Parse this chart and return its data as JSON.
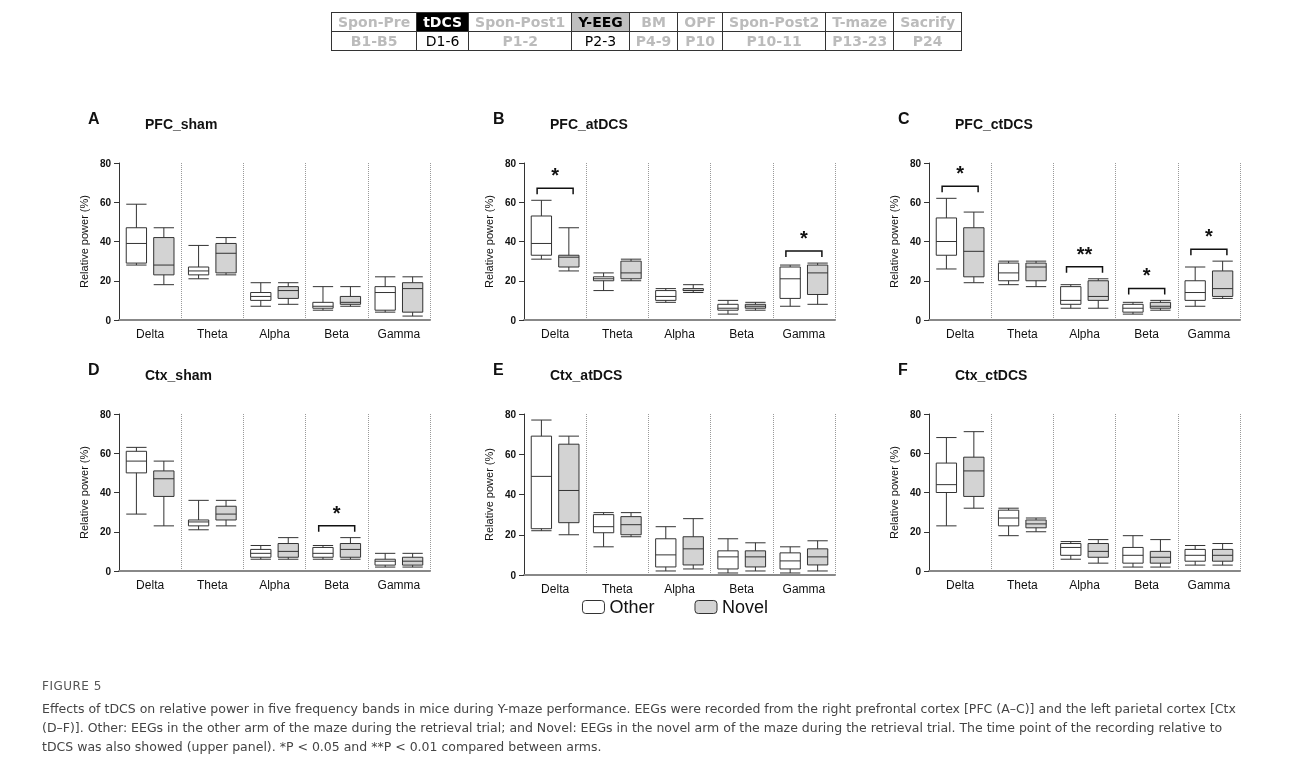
{
  "chart_data": [
    {
      "type": "other",
      "categories": [
        "Spon-Pre",
        "tDCS",
        "Spon-Post1",
        "Y-EEG",
        "BM",
        "OPF",
        "Spon-Post2",
        "T-maze",
        "Sacrify"
      ],
      "cell_labels": [
        [
          "B1-B5",
          "D1-6",
          "P1-2",
          "P2-3",
          "P4-9",
          "P10",
          "P10-11",
          "P13-23",
          "P24"
        ]
      ],
      "colors": [
        "#ffffff",
        "#000000",
        "#ffffff",
        "#bfbfbf",
        "#ffffff",
        "#ffffff",
        "#ffffff",
        "#ffffff",
        "#ffffff"
      ]
    },
    {
      "type": "box",
      "title": "PFC_sham",
      "ylabel": "Relative power (%)",
      "categories": [
        "Delta",
        "Theta",
        "Alpha",
        "Beta",
        "Gamma"
      ],
      "ylim": [
        0,
        80
      ],
      "yticks": [
        0,
        20,
        40,
        60,
        80
      ],
      "grid": "x",
      "legend": false,
      "annotations": [
        "A"
      ],
      "series": [
        {
          "color": "#ffffff",
          "boxes": [
            {
              "low": 28,
              "q1": 29,
              "median": 39,
              "q3": 47,
              "high": 59
            },
            {
              "low": 21,
              "q1": 23,
              "median": 25,
              "q3": 27,
              "high": 38
            },
            {
              "low": 7,
              "q1": 10,
              "median": 12,
              "q3": 14,
              "high": 19
            },
            {
              "low": 5,
              "q1": 6,
              "median": 7,
              "q3": 9,
              "high": 17
            },
            {
              "low": 4,
              "q1": 5,
              "median": 14,
              "q3": 17,
              "high": 22
            }
          ]
        },
        {
          "color": "#d3d3d3",
          "boxes": [
            {
              "low": 18,
              "q1": 23,
              "median": 28,
              "q3": 42,
              "high": 47
            },
            {
              "low": 23,
              "q1": 24,
              "median": 34,
              "q3": 39,
              "high": 42
            },
            {
              "low": 8,
              "q1": 11,
              "median": 15,
              "q3": 17,
              "high": 19
            },
            {
              "low": 7,
              "q1": 8,
              "median": 9,
              "q3": 12,
              "high": 17
            },
            {
              "low": 2,
              "q1": 4,
              "median": 16,
              "q3": 19,
              "high": 22
            }
          ]
        }
      ]
    },
    {
      "type": "box",
      "title": "PFC_atDCS",
      "ylabel": "Relative power (%)",
      "categories": [
        "Delta",
        "Theta",
        "Alpha",
        "Beta",
        "Gamma"
      ],
      "ylim": [
        0,
        80
      ],
      "yticks": [
        0,
        20,
        40,
        60,
        80
      ],
      "grid": "x",
      "legend": false,
      "annotations": [
        "B",
        {
          "text": "*",
          "x": "Delta",
          "y": 61
        },
        {
          "text": "*",
          "x": "Gamma",
          "y": 29
        }
      ],
      "series": [
        {
          "color": "#ffffff",
          "boxes": [
            {
              "low": 31,
              "q1": 33,
              "median": 39,
              "q3": 53,
              "high": 61
            },
            {
              "low": 15,
              "q1": 20,
              "median": 21,
              "q3": 22,
              "high": 24
            },
            {
              "low": 9,
              "q1": 10,
              "median": 12,
              "q3": 15,
              "high": 16
            },
            {
              "low": 3,
              "q1": 5,
              "median": 6,
              "q3": 8,
              "high": 10
            },
            {
              "low": 7,
              "q1": 11,
              "median": 21,
              "q3": 27,
              "high": 28
            }
          ]
        },
        {
          "color": "#d3d3d3",
          "boxes": [
            {
              "low": 25,
              "q1": 27,
              "median": 32,
              "q3": 33,
              "high": 47
            },
            {
              "low": 20,
              "q1": 21,
              "median": 24,
              "q3": 30,
              "high": 31
            },
            {
              "low": 14,
              "q1": 15,
              "median": 15,
              "q3": 16,
              "high": 18
            },
            {
              "low": 5,
              "q1": 6,
              "median": 7,
              "q3": 8,
              "high": 9
            },
            {
              "low": 8,
              "q1": 13,
              "median": 24,
              "q3": 28,
              "high": 29
            }
          ]
        }
      ]
    },
    {
      "type": "box",
      "title": "PFC_ctDCS",
      "ylabel": "Relative power (%)",
      "categories": [
        "Delta",
        "Theta",
        "Alpha",
        "Beta",
        "Gamma"
      ],
      "ylim": [
        0,
        80
      ],
      "yticks": [
        0,
        20,
        40,
        60,
        80
      ],
      "grid": "x",
      "legend": false,
      "annotations": [
        "C",
        {
          "text": "*",
          "x": "Delta",
          "y": 62
        },
        {
          "text": "**",
          "x": "Alpha",
          "y": 21
        },
        {
          "text": "*",
          "x": "Beta",
          "y": 10
        },
        {
          "text": "*",
          "x": "Gamma",
          "y": 30
        }
      ],
      "series": [
        {
          "color": "#ffffff",
          "boxes": [
            {
              "low": 26,
              "q1": 33,
              "median": 40,
              "q3": 52,
              "high": 62
            },
            {
              "low": 18,
              "q1": 20,
              "median": 24,
              "q3": 29,
              "high": 30
            },
            {
              "low": 6,
              "q1": 8,
              "median": 10,
              "q3": 17,
              "high": 18
            },
            {
              "low": 3,
              "q1": 4,
              "median": 6,
              "q3": 8,
              "high": 9
            },
            {
              "low": 7,
              "q1": 10,
              "median": 14,
              "q3": 20,
              "high": 27
            }
          ]
        },
        {
          "color": "#d3d3d3",
          "boxes": [
            {
              "low": 19,
              "q1": 22,
              "median": 35,
              "q3": 47,
              "high": 55
            },
            {
              "low": 17,
              "q1": 20,
              "median": 27,
              "q3": 29,
              "high": 30
            },
            {
              "low": 6,
              "q1": 10,
              "median": 12,
              "q3": 20,
              "high": 21
            },
            {
              "low": 5,
              "q1": 6,
              "median": 7,
              "q3": 9,
              "high": 10
            },
            {
              "low": 11,
              "q1": 12,
              "median": 16,
              "q3": 25,
              "high": 30
            }
          ]
        }
      ]
    },
    {
      "type": "box",
      "title": "Ctx_sham",
      "ylabel": "Relative power (%)",
      "categories": [
        "Delta",
        "Theta",
        "Alpha",
        "Beta",
        "Gamma"
      ],
      "ylim": [
        0,
        80
      ],
      "yticks": [
        0,
        20,
        40,
        60,
        80
      ],
      "grid": "x",
      "legend": false,
      "annotations": [
        "D",
        {
          "text": "*",
          "x": "Beta",
          "y": 17
        }
      ],
      "series": [
        {
          "color": "#ffffff",
          "boxes": [
            {
              "low": 29,
              "q1": 50,
              "median": 56,
              "q3": 61,
              "high": 63
            },
            {
              "low": 21,
              "q1": 23,
              "median": 25,
              "q3": 26,
              "high": 36
            },
            {
              "low": 6,
              "q1": 7,
              "median": 9,
              "q3": 11,
              "high": 13
            },
            {
              "low": 6,
              "q1": 7,
              "median": 9,
              "q3": 12,
              "high": 13
            },
            {
              "low": 2,
              "q1": 3,
              "median": 5,
              "q3": 6,
              "high": 9
            }
          ]
        },
        {
          "color": "#d3d3d3",
          "boxes": [
            {
              "low": 23,
              "q1": 38,
              "median": 47,
              "q3": 51,
              "high": 56
            },
            {
              "low": 23,
              "q1": 26,
              "median": 29,
              "q3": 33,
              "high": 36
            },
            {
              "low": 6,
              "q1": 7,
              "median": 10,
              "q3": 14,
              "high": 17
            },
            {
              "low": 6,
              "q1": 7,
              "median": 11,
              "q3": 14,
              "high": 17
            },
            {
              "low": 2,
              "q1": 3,
              "median": 5,
              "q3": 7,
              "high": 9
            }
          ]
        }
      ]
    },
    {
      "type": "box",
      "title": "Ctx_atDCS",
      "ylabel": "Relative power (%)",
      "categories": [
        "Delta",
        "Theta",
        "Alpha",
        "Beta",
        "Gamma"
      ],
      "ylim": [
        0,
        80
      ],
      "yticks": [
        0,
        20,
        40,
        60,
        80
      ],
      "grid": "x",
      "legend": "bottom",
      "annotations": [
        "E"
      ],
      "series": [
        {
          "name": "Other",
          "color": "#ffffff",
          "boxes": [
            {
              "low": 22,
              "q1": 23,
              "median": 49,
              "q3": 69,
              "high": 77
            },
            {
              "low": 14,
              "q1": 21,
              "median": 24,
              "q3": 30,
              "high": 31
            },
            {
              "low": 2,
              "q1": 4,
              "median": 10,
              "q3": 18,
              "high": 24
            },
            {
              "low": 1,
              "q1": 3,
              "median": 9,
              "q3": 12,
              "high": 18
            },
            {
              "low": 1,
              "q1": 3,
              "median": 7,
              "q3": 11,
              "high": 14
            }
          ]
        },
        {
          "name": "Novel",
          "color": "#d3d3d3",
          "boxes": [
            {
              "low": 20,
              "q1": 26,
              "median": 42,
              "q3": 65,
              "high": 69
            },
            {
              "low": 19,
              "q1": 20,
              "median": 25,
              "q3": 29,
              "high": 31
            },
            {
              "low": 3,
              "q1": 5,
              "median": 13,
              "q3": 19,
              "high": 28
            },
            {
              "low": 2,
              "q1": 4,
              "median": 9,
              "q3": 12,
              "high": 16
            },
            {
              "low": 2,
              "q1": 5,
              "median": 9,
              "q3": 13,
              "high": 17
            }
          ]
        }
      ]
    },
    {
      "type": "box",
      "title": "Ctx_ctDCS",
      "ylabel": "Relative power (%)",
      "categories": [
        "Delta",
        "Theta",
        "Alpha",
        "Beta",
        "Gamma"
      ],
      "ylim": [
        0,
        80
      ],
      "yticks": [
        0,
        20,
        40,
        60,
        80
      ],
      "grid": "x",
      "legend": false,
      "annotations": [
        "F"
      ],
      "series": [
        {
          "color": "#ffffff",
          "boxes": [
            {
              "low": 23,
              "q1": 40,
              "median": 44,
              "q3": 55,
              "high": 68
            },
            {
              "low": 18,
              "q1": 23,
              "median": 27,
              "q3": 31,
              "high": 32
            },
            {
              "low": 6,
              "q1": 8,
              "median": 12,
              "q3": 14,
              "high": 15
            },
            {
              "low": 2,
              "q1": 4,
              "median": 8,
              "q3": 12,
              "high": 18
            },
            {
              "low": 3,
              "q1": 5,
              "median": 8,
              "q3": 11,
              "high": 13
            }
          ]
        },
        {
          "color": "#d3d3d3",
          "boxes": [
            {
              "low": 32,
              "q1": 38,
              "median": 51,
              "q3": 58,
              "high": 71
            },
            {
              "low": 20,
              "q1": 22,
              "median": 24,
              "q3": 26,
              "high": 27
            },
            {
              "low": 4,
              "q1": 7,
              "median": 10,
              "q3": 14,
              "high": 16
            },
            {
              "low": 2,
              "q1": 4,
              "median": 7,
              "q3": 10,
              "high": 16
            },
            {
              "low": 3,
              "q1": 5,
              "median": 8,
              "q3": 11,
              "high": 14
            }
          ]
        }
      ]
    },
    {
      "type": "other",
      "title": "FIGURE 5",
      "annotations": [
        "Effects of tDCS on relative power in five frequency bands in mice during Y-maze performance. EEGs were recorded from the right prefrontal cortex [PFC (A–C)] and the left parietal cortex [Ctx (D–F)]. Other: EEGs in the other arm of the maze during the retrieval trial; and Novel: EEGs in the novel arm of the maze during the retrieval trial. The time point of the recording relative to tDCS was also showed (upper panel). *P < 0.05 and **P < 0.01 compared between arms."
      ]
    }
  ]
}
